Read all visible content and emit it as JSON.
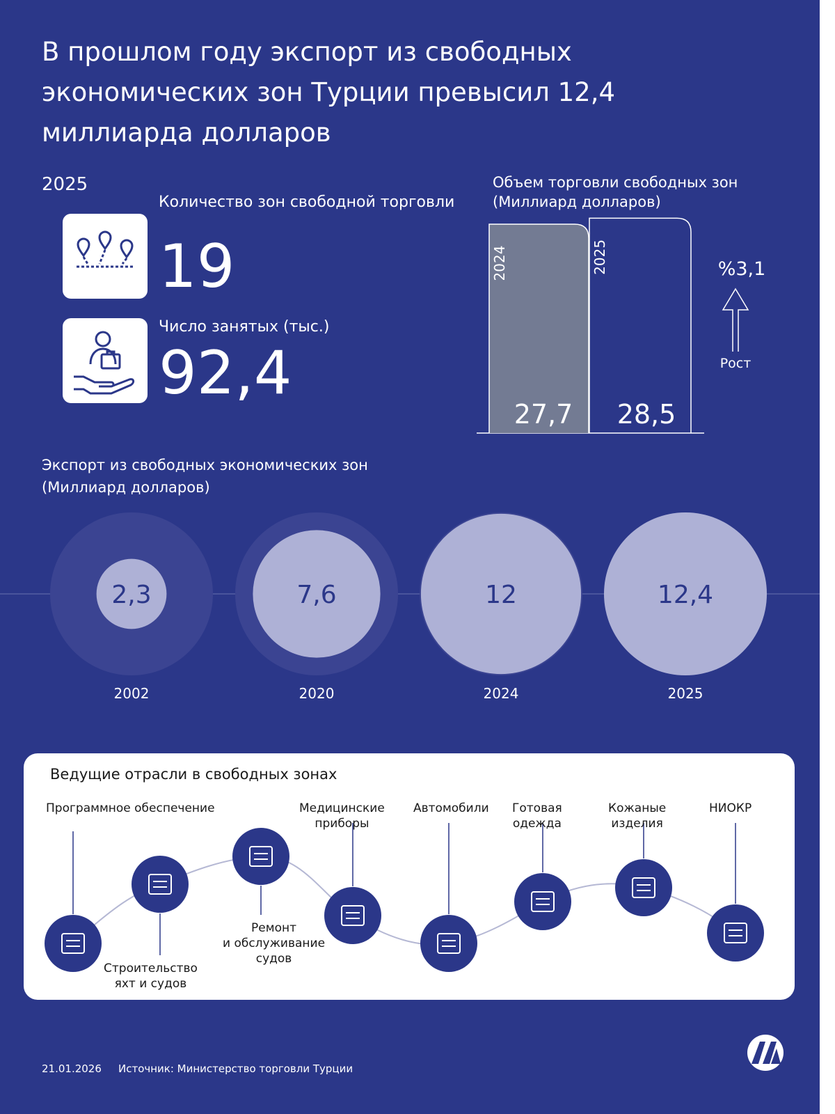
{
  "title": "В прошлом году экспорт из свободных экономических зон Турции превысил 12,4 миллиарда долларов",
  "year": "2025",
  "stats": [
    {
      "label": "Количество зон свободной торговли",
      "value": "19",
      "icon": "map-pins-icon"
    },
    {
      "label": "Число занятых (тыс.)",
      "value": "92,4",
      "icon": "worker-hand-icon"
    }
  ],
  "colors": {
    "background": "#2b3789",
    "bar_2024": "#737b93",
    "bubble": "#aeb1d6",
    "bubble_halo": "#3b4492",
    "sector_icon": "#2b3789"
  },
  "chart_data": [
    {
      "type": "bar",
      "title": "Объем торговли свободных зон",
      "subtitle": "(Миллиард долларов)",
      "categories": [
        "2024",
        "2025"
      ],
      "values": [
        27.7,
        28.5
      ],
      "value_labels": [
        "27,7",
        "28,5"
      ],
      "growth": {
        "value": "%3,1",
        "label": "Рост",
        "icon": "arrow-up-icon"
      }
    },
    {
      "type": "bubble",
      "title": "Экспорт из свободных экономических зон",
      "subtitle": "(Миллиард долларов)",
      "categories": [
        "2002",
        "2020",
        "2024",
        "2025"
      ],
      "values": [
        2.3,
        7.6,
        12,
        12.4
      ],
      "value_labels": [
        "2,3",
        "7,6",
        "12",
        "12,4"
      ]
    }
  ],
  "sectors": {
    "title": "Ведущие отрасли в свободных зонах",
    "items": [
      {
        "label": "Программное обеспечение",
        "icon": "software-flowchart-icon"
      },
      {
        "label": "Строительство\nяхт и судов",
        "icon": "ship-icon"
      },
      {
        "label": "Ремонт\nи обслуживание\nсудов",
        "icon": "dry-dock-ship-icon"
      },
      {
        "label": "Медицинские\nприборы",
        "icon": "medical-devices-icon"
      },
      {
        "label": "Автомобили",
        "icon": "car-icon"
      },
      {
        "label": "Готовая\nодежда",
        "icon": "clothing-icon"
      },
      {
        "label": "Кожаные\nизделия",
        "icon": "leather-icon"
      },
      {
        "label": "НИОКР",
        "icon": "microscope-icon"
      }
    ]
  },
  "footer": {
    "date": "21.01.2026",
    "source": "Источник: Министерство торговли Турции",
    "logo": "AA"
  }
}
